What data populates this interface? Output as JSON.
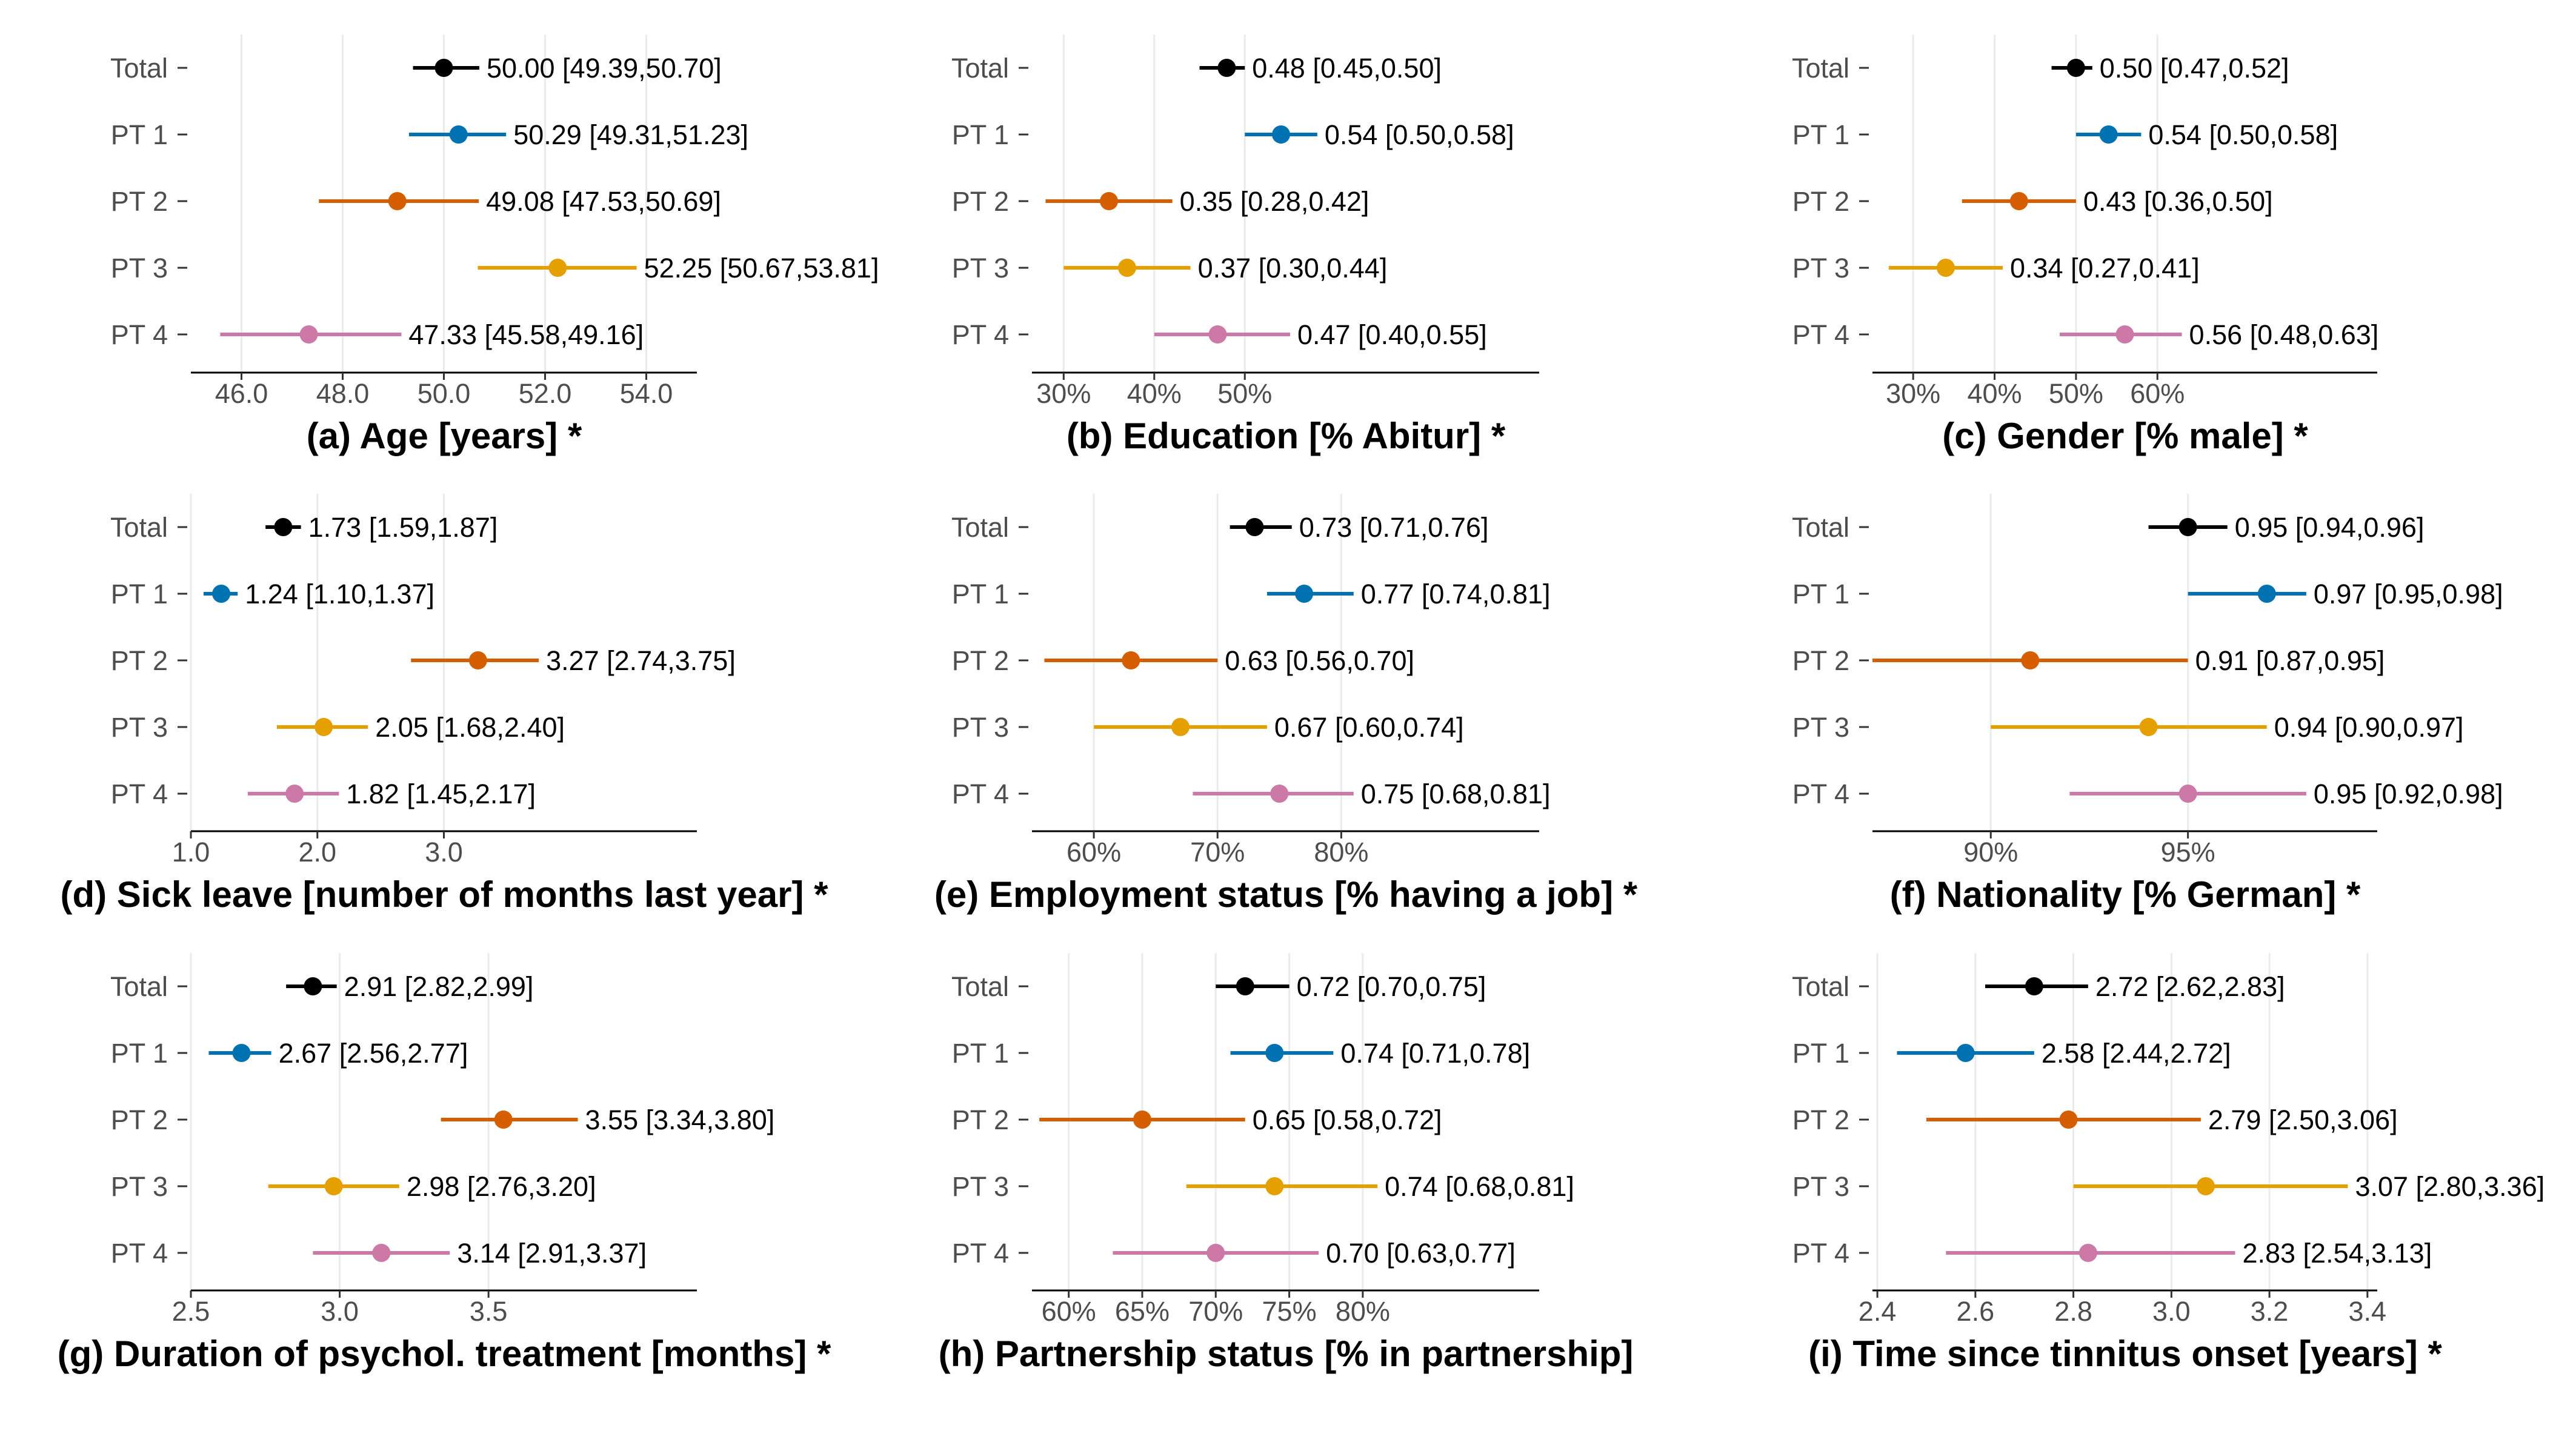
{
  "colors": {
    "Total": "#000000",
    "PT 1": "#0072B2",
    "PT 2": "#D55E00",
    "PT 3": "#E69F00",
    "PT 4": "#CC79A7"
  },
  "chart_data": [
    {
      "type": "forest",
      "title": "(a) Age [years] *",
      "categories": [
        "Total",
        "PT 1",
        "PT 2",
        "PT 3",
        "PT 4"
      ],
      "values": [
        50.0,
        50.29,
        49.08,
        52.25,
        47.33
      ],
      "lower": [
        49.39,
        49.31,
        47.53,
        50.67,
        45.58
      ],
      "upper": [
        50.7,
        51.23,
        50.69,
        53.81,
        49.16
      ],
      "labels": [
        "50.00 [49.39,50.70]",
        "50.29 [49.31,51.23]",
        "49.08 [47.53,50.69]",
        "52.25 [50.67,53.81]",
        "47.33 [45.58,49.16]"
      ],
      "xlim": [
        45.0,
        55.0
      ],
      "ticks": [
        46.0,
        48.0,
        50.0,
        52.0,
        54.0
      ],
      "tick_labels": [
        "46.0",
        "48.0",
        "50.0",
        "52.0",
        "54.0"
      ]
    },
    {
      "type": "forest",
      "title": "(b) Education [% Abitur] *",
      "categories": [
        "Total",
        "PT 1",
        "PT 2",
        "PT 3",
        "PT 4"
      ],
      "values": [
        0.48,
        0.54,
        0.35,
        0.37,
        0.47
      ],
      "lower": [
        0.45,
        0.5,
        0.28,
        0.3,
        0.4
      ],
      "upper": [
        0.5,
        0.58,
        0.42,
        0.44,
        0.55
      ],
      "labels": [
        "0.48 [0.45,0.50]",
        "0.54 [0.50,0.58]",
        "0.35 [0.28,0.42]",
        "0.37 [0.30,0.44]",
        "0.47 [0.40,0.55]"
      ],
      "xlim": [
        0.265,
        0.825
      ],
      "ticks": [
        0.3,
        0.4,
        0.5
      ],
      "tick_labels": [
        "30%",
        "40%",
        "50%"
      ]
    },
    {
      "type": "forest",
      "title": "(c) Gender [% male] *",
      "categories": [
        "Total",
        "PT 1",
        "PT 2",
        "PT 3",
        "PT 4"
      ],
      "values": [
        0.5,
        0.54,
        0.43,
        0.34,
        0.56
      ],
      "lower": [
        0.47,
        0.5,
        0.36,
        0.27,
        0.48
      ],
      "upper": [
        0.52,
        0.58,
        0.5,
        0.41,
        0.63
      ],
      "labels": [
        "0.50 [0.47,0.52]",
        "0.54 [0.50,0.58]",
        "0.43 [0.36,0.50]",
        "0.34 [0.27,0.41]",
        "0.56 [0.48,0.63]"
      ],
      "xlim": [
        0.25,
        0.87
      ],
      "ticks": [
        0.3,
        0.4,
        0.5,
        0.6
      ],
      "tick_labels": [
        "30%",
        "40%",
        "50%",
        "60%"
      ]
    },
    {
      "type": "forest",
      "title": "(d) Sick leave [number of months last year] *",
      "categories": [
        "Total",
        "PT 1",
        "PT 2",
        "PT 3",
        "PT 4"
      ],
      "values": [
        1.73,
        1.24,
        3.27,
        2.05,
        1.82
      ],
      "lower": [
        1.59,
        1.1,
        2.74,
        1.68,
        1.45
      ],
      "upper": [
        1.87,
        1.37,
        3.75,
        2.4,
        2.17
      ],
      "labels": [
        "1.73 [1.59,1.87]",
        "1.24 [1.10,1.37]",
        "3.27 [2.74,3.75]",
        "2.05 [1.68,2.40]",
        "1.82 [1.45,2.17]"
      ],
      "xlim": [
        1.0,
        5.0
      ],
      "ticks": [
        1.0,
        2.0,
        3.0
      ],
      "tick_labels": [
        "1.0",
        "2.0",
        "3.0"
      ]
    },
    {
      "type": "forest",
      "title": "(e) Employment status [% having a job] *",
      "categories": [
        "Total",
        "PT 1",
        "PT 2",
        "PT 3",
        "PT 4"
      ],
      "values": [
        0.73,
        0.77,
        0.63,
        0.67,
        0.75
      ],
      "lower": [
        0.71,
        0.74,
        0.56,
        0.6,
        0.68
      ],
      "upper": [
        0.76,
        0.81,
        0.7,
        0.74,
        0.81
      ],
      "labels": [
        "0.73 [0.71,0.76]",
        "0.77 [0.74,0.81]",
        "0.63 [0.56,0.70]",
        "0.67 [0.60,0.74]",
        "0.75 [0.68,0.81]"
      ],
      "xlim": [
        0.55,
        0.96
      ],
      "ticks": [
        0.6,
        0.7,
        0.8
      ],
      "tick_labels": [
        "60%",
        "70%",
        "80%"
      ]
    },
    {
      "type": "forest",
      "title": "(f) Nationality [% German] *",
      "categories": [
        "Total",
        "PT 1",
        "PT 2",
        "PT 3",
        "PT 4"
      ],
      "values": [
        0.95,
        0.97,
        0.91,
        0.94,
        0.95
      ],
      "lower": [
        0.94,
        0.95,
        0.87,
        0.9,
        0.92
      ],
      "upper": [
        0.96,
        0.98,
        0.95,
        0.97,
        0.98
      ],
      "labels": [
        "0.95 [0.94,0.96]",
        "0.97 [0.95,0.98]",
        "0.91 [0.87,0.95]",
        "0.94 [0.90,0.97]",
        "0.95 [0.92,0.98]"
      ],
      "xlim": [
        0.87,
        0.998
      ],
      "ticks": [
        0.9,
        0.95
      ],
      "tick_labels": [
        "90%",
        "95%"
      ]
    },
    {
      "type": "forest",
      "title": "(g) Duration of psychol. treatment [months] *",
      "categories": [
        "Total",
        "PT 1",
        "PT 2",
        "PT 3",
        "PT 4"
      ],
      "values": [
        2.91,
        2.67,
        3.55,
        2.98,
        3.14
      ],
      "lower": [
        2.82,
        2.56,
        3.34,
        2.76,
        2.91
      ],
      "upper": [
        2.99,
        2.77,
        3.8,
        3.2,
        3.37
      ],
      "labels": [
        "2.91 [2.82,2.99]",
        "2.67 [2.56,2.77]",
        "3.55 [3.34,3.80]",
        "2.98 [2.76,3.20]",
        "3.14 [2.91,3.37]"
      ],
      "xlim": [
        2.5,
        4.2
      ],
      "ticks": [
        2.5,
        3.0,
        3.5
      ],
      "tick_labels": [
        "2.5",
        "3.0",
        "3.5"
      ]
    },
    {
      "type": "forest",
      "title": "(h) Partnership status [% in partnership]",
      "categories": [
        "Total",
        "PT 1",
        "PT 2",
        "PT 3",
        "PT 4"
      ],
      "values": [
        0.72,
        0.74,
        0.65,
        0.74,
        0.7
      ],
      "lower": [
        0.7,
        0.71,
        0.58,
        0.68,
        0.63
      ],
      "upper": [
        0.75,
        0.78,
        0.72,
        0.81,
        0.77
      ],
      "labels": [
        "0.72 [0.70,0.75]",
        "0.74 [0.71,0.78]",
        "0.65 [0.58,0.72]",
        "0.74 [0.68,0.81]",
        "0.70 [0.63,0.77]"
      ],
      "xlim": [
        0.575,
        0.92
      ],
      "ticks": [
        0.6,
        0.65,
        0.7,
        0.75,
        0.8
      ],
      "tick_labels": [
        "60%",
        "65%",
        "70%",
        "75%",
        "80%"
      ]
    },
    {
      "type": "forest",
      "title": "(i) Time since tinnitus onset [years] *",
      "categories": [
        "Total",
        "PT 1",
        "PT 2",
        "PT 3",
        "PT 4"
      ],
      "values": [
        2.72,
        2.58,
        2.79,
        3.07,
        2.83
      ],
      "lower": [
        2.62,
        2.44,
        2.5,
        2.8,
        2.54
      ],
      "upper": [
        2.83,
        2.72,
        3.06,
        3.36,
        3.13
      ],
      "labels": [
        "2.72 [2.62,2.83]",
        "2.58 [2.44,2.72]",
        "2.79 [2.50,3.06]",
        "3.07 [2.80,3.36]",
        "2.83 [2.54,3.13]"
      ],
      "xlim": [
        2.39,
        3.42
      ],
      "ticks": [
        2.4,
        2.6,
        2.8,
        3.0,
        3.2,
        3.4
      ],
      "tick_labels": [
        "2.4",
        "2.6",
        "2.8",
        "3.0",
        "3.2",
        "3.4"
      ]
    }
  ]
}
